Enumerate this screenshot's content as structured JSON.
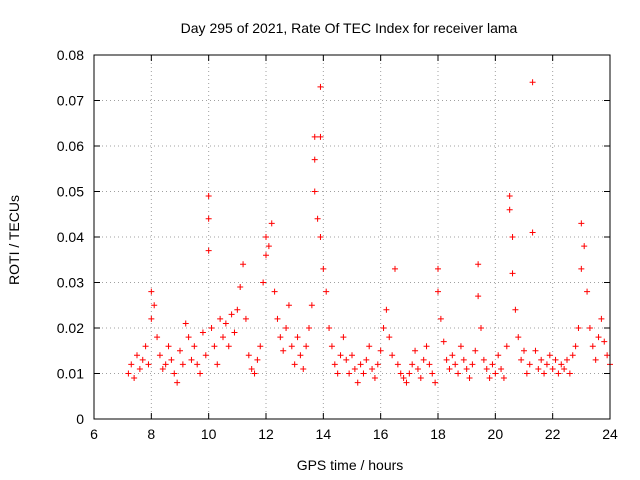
{
  "chart_data": {
    "type": "scatter",
    "title": "Day 295 of 2021, Rate Of TEC Index for receiver lama",
    "xlabel": "GPS time / hours",
    "ylabel": "ROTI / TECUs",
    "xlim": [
      6,
      24
    ],
    "ylim": [
      0,
      0.08
    ],
    "xticks": [
      "6",
      "8",
      "10",
      "12",
      "14",
      "16",
      "18",
      "20",
      "22",
      "24"
    ],
    "yticks": [
      "0",
      "0.01",
      "0.02",
      "0.03",
      "0.04",
      "0.05",
      "0.06",
      "0.07",
      "0.08"
    ],
    "grid": true,
    "marker": "+",
    "color": "#ff0000",
    "series": [
      {
        "name": "ROTI",
        "points": [
          [
            7.2,
            0.01
          ],
          [
            7.3,
            0.012
          ],
          [
            7.4,
            0.009
          ],
          [
            7.5,
            0.014
          ],
          [
            7.6,
            0.011
          ],
          [
            7.7,
            0.013
          ],
          [
            7.8,
            0.016
          ],
          [
            7.9,
            0.012
          ],
          [
            8.0,
            0.028
          ],
          [
            8.1,
            0.025
          ],
          [
            8.0,
            0.022
          ],
          [
            8.2,
            0.018
          ],
          [
            8.3,
            0.014
          ],
          [
            8.4,
            0.011
          ],
          [
            8.5,
            0.012
          ],
          [
            8.6,
            0.016
          ],
          [
            8.7,
            0.013
          ],
          [
            8.8,
            0.01
          ],
          [
            8.9,
            0.008
          ],
          [
            9.0,
            0.015
          ],
          [
            9.1,
            0.012
          ],
          [
            9.2,
            0.021
          ],
          [
            9.3,
            0.018
          ],
          [
            9.4,
            0.013
          ],
          [
            9.5,
            0.016
          ],
          [
            9.6,
            0.012
          ],
          [
            9.7,
            0.01
          ],
          [
            9.8,
            0.019
          ],
          [
            9.9,
            0.014
          ],
          [
            10.0,
            0.049
          ],
          [
            10.0,
            0.044
          ],
          [
            10.0,
            0.037
          ],
          [
            10.1,
            0.02
          ],
          [
            10.2,
            0.016
          ],
          [
            10.3,
            0.012
          ],
          [
            10.4,
            0.022
          ],
          [
            10.5,
            0.018
          ],
          [
            10.6,
            0.021
          ],
          [
            10.7,
            0.016
          ],
          [
            10.8,
            0.023
          ],
          [
            10.9,
            0.019
          ],
          [
            11.0,
            0.024
          ],
          [
            11.1,
            0.029
          ],
          [
            11.2,
            0.034
          ],
          [
            11.3,
            0.022
          ],
          [
            11.4,
            0.014
          ],
          [
            11.5,
            0.011
          ],
          [
            11.6,
            0.01
          ],
          [
            11.7,
            0.013
          ],
          [
            11.8,
            0.016
          ],
          [
            11.9,
            0.03
          ],
          [
            12.0,
            0.04
          ],
          [
            12.0,
            0.036
          ],
          [
            12.1,
            0.038
          ],
          [
            12.2,
            0.043
          ],
          [
            12.3,
            0.028
          ],
          [
            12.4,
            0.022
          ],
          [
            12.5,
            0.018
          ],
          [
            12.6,
            0.015
          ],
          [
            12.7,
            0.02
          ],
          [
            12.8,
            0.025
          ],
          [
            12.9,
            0.016
          ],
          [
            13.0,
            0.012
          ],
          [
            13.1,
            0.018
          ],
          [
            13.2,
            0.014
          ],
          [
            13.3,
            0.011
          ],
          [
            13.4,
            0.016
          ],
          [
            13.5,
            0.02
          ],
          [
            13.6,
            0.025
          ],
          [
            13.7,
            0.062
          ],
          [
            13.7,
            0.057
          ],
          [
            13.7,
            0.05
          ],
          [
            13.8,
            0.044
          ],
          [
            13.9,
            0.073
          ],
          [
            13.9,
            0.062
          ],
          [
            13.9,
            0.04
          ],
          [
            14.0,
            0.033
          ],
          [
            14.1,
            0.028
          ],
          [
            14.2,
            0.02
          ],
          [
            14.3,
            0.016
          ],
          [
            14.4,
            0.012
          ],
          [
            14.5,
            0.01
          ],
          [
            14.6,
            0.014
          ],
          [
            14.7,
            0.018
          ],
          [
            14.8,
            0.013
          ],
          [
            14.9,
            0.01
          ],
          [
            15.0,
            0.014
          ],
          [
            15.1,
            0.011
          ],
          [
            15.2,
            0.008
          ],
          [
            15.3,
            0.012
          ],
          [
            15.4,
            0.01
          ],
          [
            15.5,
            0.013
          ],
          [
            15.6,
            0.016
          ],
          [
            15.7,
            0.011
          ],
          [
            15.8,
            0.009
          ],
          [
            15.9,
            0.012
          ],
          [
            16.0,
            0.015
          ],
          [
            16.1,
            0.02
          ],
          [
            16.2,
            0.024
          ],
          [
            16.3,
            0.018
          ],
          [
            16.4,
            0.014
          ],
          [
            16.5,
            0.033
          ],
          [
            16.6,
            0.012
          ],
          [
            16.7,
            0.01
          ],
          [
            16.8,
            0.009
          ],
          [
            16.9,
            0.008
          ],
          [
            17.0,
            0.01
          ],
          [
            17.1,
            0.012
          ],
          [
            17.2,
            0.015
          ],
          [
            17.3,
            0.011
          ],
          [
            17.4,
            0.009
          ],
          [
            17.5,
            0.013
          ],
          [
            17.6,
            0.016
          ],
          [
            17.7,
            0.012
          ],
          [
            17.8,
            0.01
          ],
          [
            17.9,
            0.008
          ],
          [
            18.0,
            0.033
          ],
          [
            18.0,
            0.028
          ],
          [
            18.1,
            0.022
          ],
          [
            18.2,
            0.017
          ],
          [
            18.3,
            0.013
          ],
          [
            18.4,
            0.011
          ],
          [
            18.5,
            0.014
          ],
          [
            18.6,
            0.012
          ],
          [
            18.7,
            0.01
          ],
          [
            18.8,
            0.016
          ],
          [
            18.9,
            0.013
          ],
          [
            19.0,
            0.011
          ],
          [
            19.1,
            0.009
          ],
          [
            19.2,
            0.012
          ],
          [
            19.3,
            0.015
          ],
          [
            19.4,
            0.034
          ],
          [
            19.4,
            0.027
          ],
          [
            19.5,
            0.02
          ],
          [
            19.6,
            0.013
          ],
          [
            19.7,
            0.011
          ],
          [
            19.8,
            0.009
          ],
          [
            19.9,
            0.012
          ],
          [
            20.0,
            0.01
          ],
          [
            20.1,
            0.014
          ],
          [
            20.2,
            0.011
          ],
          [
            20.3,
            0.009
          ],
          [
            20.4,
            0.016
          ],
          [
            20.5,
            0.049
          ],
          [
            20.5,
            0.046
          ],
          [
            20.6,
            0.04
          ],
          [
            20.6,
            0.032
          ],
          [
            20.7,
            0.024
          ],
          [
            20.8,
            0.018
          ],
          [
            20.9,
            0.013
          ],
          [
            21.0,
            0.015
          ],
          [
            21.1,
            0.01
          ],
          [
            21.2,
            0.012
          ],
          [
            21.3,
            0.074
          ],
          [
            21.3,
            0.041
          ],
          [
            21.4,
            0.015
          ],
          [
            21.5,
            0.011
          ],
          [
            21.6,
            0.013
          ],
          [
            21.7,
            0.01
          ],
          [
            21.8,
            0.012
          ],
          [
            21.9,
            0.014
          ],
          [
            22.0,
            0.011
          ],
          [
            22.1,
            0.013
          ],
          [
            22.2,
            0.01
          ],
          [
            22.3,
            0.012
          ],
          [
            22.4,
            0.011
          ],
          [
            22.5,
            0.013
          ],
          [
            22.6,
            0.01
          ],
          [
            22.7,
            0.014
          ],
          [
            22.8,
            0.016
          ],
          [
            22.9,
            0.02
          ],
          [
            23.0,
            0.043
          ],
          [
            23.0,
            0.033
          ],
          [
            23.1,
            0.038
          ],
          [
            23.2,
            0.028
          ],
          [
            23.3,
            0.02
          ],
          [
            23.4,
            0.016
          ],
          [
            23.5,
            0.013
          ],
          [
            23.6,
            0.018
          ],
          [
            23.7,
            0.022
          ],
          [
            23.8,
            0.017
          ],
          [
            23.9,
            0.014
          ],
          [
            24.0,
            0.012
          ]
        ]
      }
    ]
  }
}
